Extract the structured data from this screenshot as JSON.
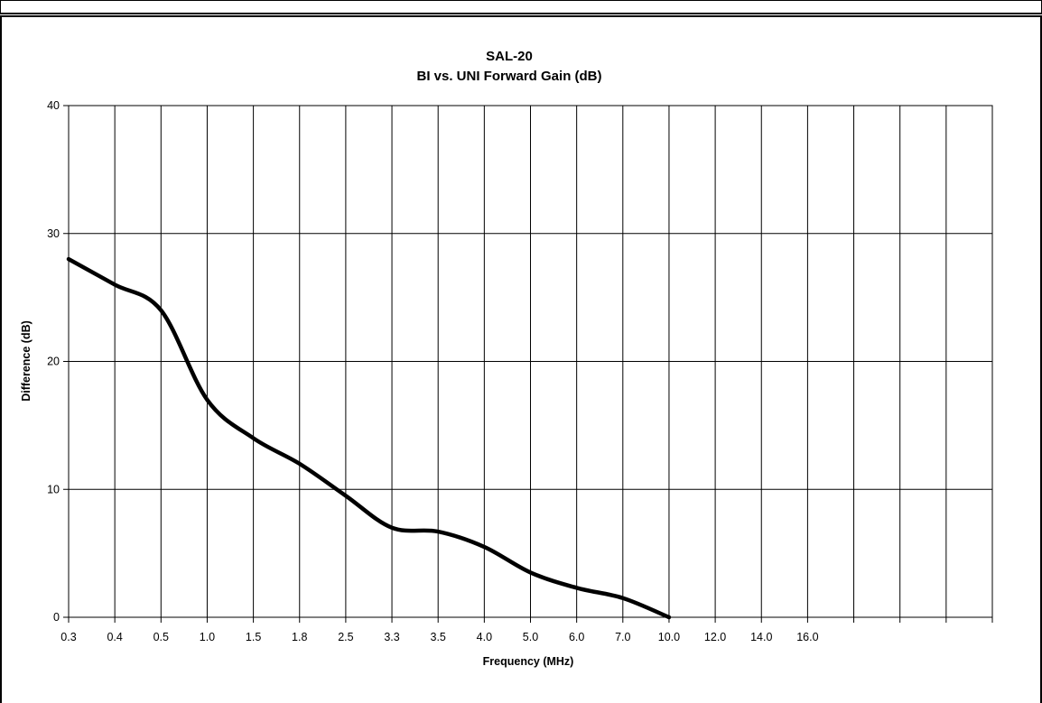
{
  "chart_data": {
    "type": "line",
    "title": "SAL-20",
    "subtitle": "BI vs. UNI Forward Gain (dB)",
    "xlabel": "Frequency (MHz)",
    "ylabel": "Difference (dB)",
    "ylim": [
      0,
      40
    ],
    "yticks": [
      "0",
      "10",
      "20",
      "30",
      "40"
    ],
    "categories": [
      "0.3",
      "0.4",
      "0.5",
      "1.0",
      "1.5",
      "1.8",
      "2.5",
      "3.3",
      "3.5",
      "4.0",
      "5.0",
      "6.0",
      "7.0",
      "10.0",
      "12.0",
      "14.0",
      "16.0",
      "",
      "",
      "",
      ""
    ],
    "grid": true,
    "legend": "none",
    "line_color": "#000000",
    "series": [
      {
        "x": [
          "0.3",
          "0.4",
          "0.5",
          "1.0",
          "1.5",
          "1.8",
          "2.5",
          "3.3",
          "3.5",
          "4.0",
          "5.0",
          "6.0",
          "7.0",
          "10.0"
        ],
        "values": [
          28,
          26,
          24,
          17,
          14,
          12,
          9.5,
          7,
          6.7,
          5.5,
          3.5,
          2.3,
          1.5,
          0
        ]
      }
    ]
  }
}
